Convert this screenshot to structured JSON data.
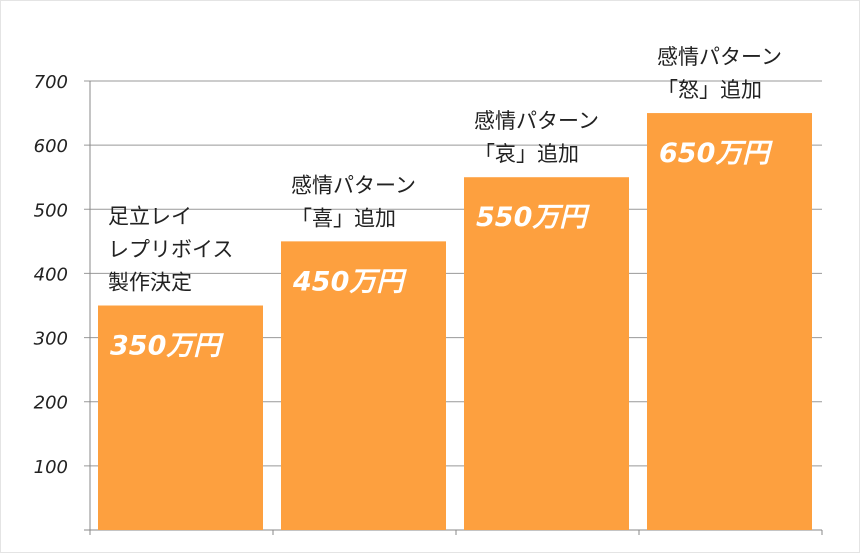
{
  "chart_data": {
    "type": "bar",
    "categories": [
      [
        "足立レイ",
        "レプリボイス",
        "製作決定"
      ],
      [
        "感情パターン",
        "「喜」追加"
      ],
      [
        "感情パターン",
        "「哀」追加"
      ],
      [
        "感情パターン",
        "「怒」追加"
      ]
    ],
    "values": [
      350,
      450,
      550,
      650
    ],
    "data_labels": [
      "350万円",
      "450万円",
      "550万円",
      "650万円"
    ],
    "yticks": [
      100,
      200,
      300,
      400,
      500,
      600,
      700
    ],
    "ylim": [
      0,
      700
    ],
    "grid": true,
    "bar_color": "#FDA03F",
    "title": "",
    "xlabel": "",
    "ylabel": ""
  }
}
